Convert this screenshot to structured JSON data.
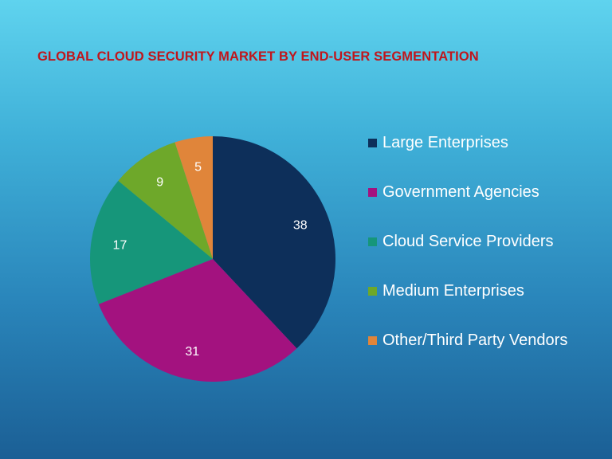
{
  "chart_data": {
    "type": "pie",
    "title": "GLOBAL CLOUD SECURITY MARKET BY END-USER SEGMENTATION",
    "categories": [
      "Large Enterprises",
      "Government Agencies",
      "Cloud Service Providers",
      "Medium Enterprises",
      "Other/Third Party Vendors"
    ],
    "values": [
      38,
      31,
      17,
      9,
      5
    ],
    "colors": [
      "#0d2f5a",
      "#a3127f",
      "#16967a",
      "#6ea82a",
      "#e0853a"
    ],
    "legend_position": "right",
    "data_labels": [
      "38",
      "31",
      "17",
      "9",
      "5"
    ]
  }
}
